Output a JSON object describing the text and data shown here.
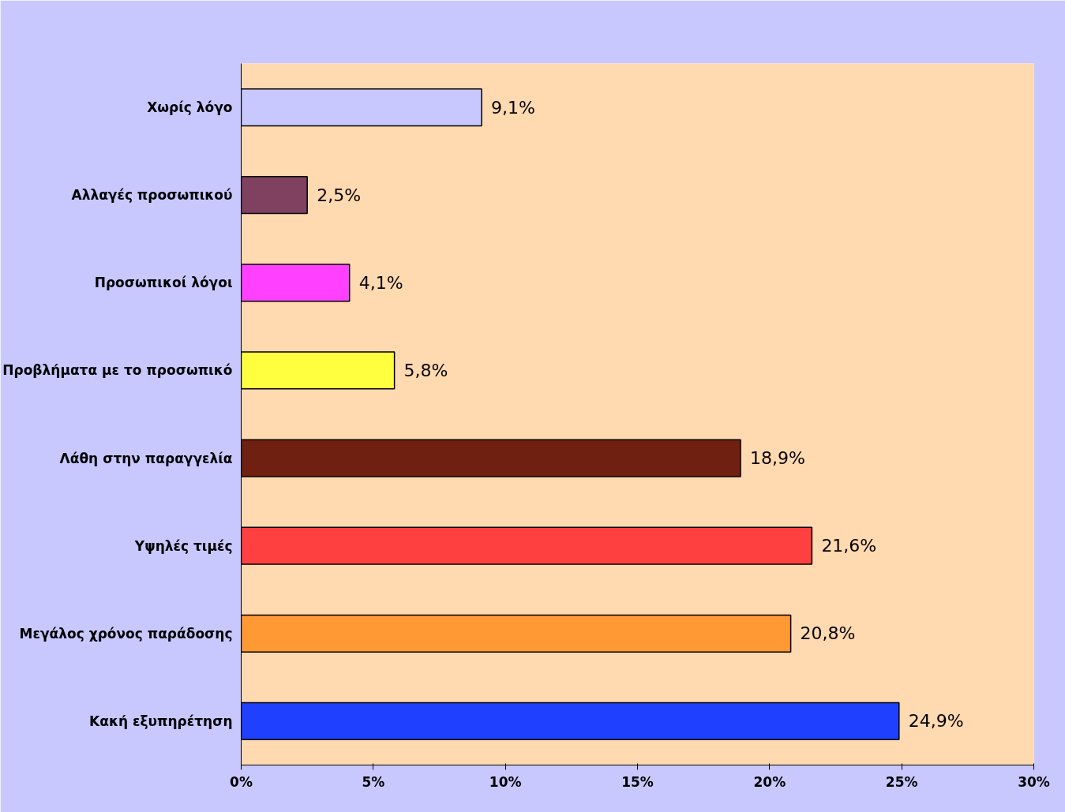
{
  "chart_data": {
    "type": "bar",
    "orientation": "horizontal",
    "categories": [
      "Χωρίς λόγο",
      "Αλλαγές προσωπικού",
      "Προσωπικοί λόγοι",
      "Προβλήματα με το προσωπικό",
      "Λάθη στην παραγγελία",
      "Υψηλές τιμές",
      "Μεγάλος χρόνος παράδοσης",
      "Κακή εξυπηρέτηση"
    ],
    "values": [
      9.1,
      2.5,
      4.1,
      5.8,
      18.9,
      21.6,
      20.8,
      24.9
    ],
    "colors": [
      "#c8c8ff",
      "#804060",
      "#ff40ff",
      "#ffff40",
      "#702010",
      "#ff4040",
      "#ff9933",
      "#2040ff"
    ],
    "value_labels": [
      "9,1%",
      "2,5%",
      "4,1%",
      "5,8%",
      "18,9%",
      "21,6%",
      "20,8%",
      "24,9%"
    ],
    "xlim": [
      0,
      30
    ],
    "xticks": [
      {
        "value": 0,
        "label": "0%"
      },
      {
        "value": 5,
        "label": "5%"
      },
      {
        "value": 10,
        "label": "10%"
      },
      {
        "value": 15,
        "label": "15%"
      },
      {
        "value": 20,
        "label": "20%"
      },
      {
        "value": 25,
        "label": "25%"
      },
      {
        "value": 30,
        "label": "30%"
      }
    ],
    "grid": false
  }
}
